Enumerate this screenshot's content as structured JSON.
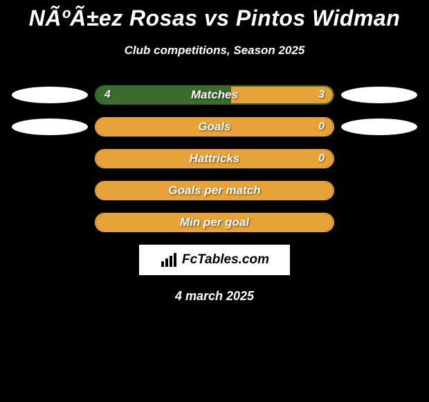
{
  "title": "NÃºÃ±ez Rosas vs Pintos Widman",
  "subtitle": "Club competitions, Season 2025",
  "date": "4 march 2025",
  "logo_text": "FcTables.com",
  "background_color": "#000000",
  "ellipse_color": "#ffffff",
  "colors": {
    "player1": "#3a6b2f",
    "player2": "#e8a23a"
  },
  "rows": [
    {
      "label": "Matches",
      "left_val": "4",
      "right_val": "3",
      "left_pct": 57,
      "right_pct": 43,
      "show_ellipse_left": true,
      "show_ellipse_right": true,
      "show_vals": true,
      "border": "#3a6b2f"
    },
    {
      "label": "Goals",
      "left_val": "",
      "right_val": "0",
      "left_pct": 0,
      "right_pct": 100,
      "show_ellipse_left": true,
      "show_ellipse_right": true,
      "show_vals": true,
      "border": "#e8a23a"
    },
    {
      "label": "Hattricks",
      "left_val": "",
      "right_val": "0",
      "left_pct": 0,
      "right_pct": 100,
      "show_ellipse_left": false,
      "show_ellipse_right": false,
      "show_vals": true,
      "border": "#e8a23a"
    },
    {
      "label": "Goals per match",
      "left_val": "",
      "right_val": "",
      "left_pct": 0,
      "right_pct": 100,
      "show_ellipse_left": false,
      "show_ellipse_right": false,
      "show_vals": false,
      "border": "#e8a23a"
    },
    {
      "label": "Min per goal",
      "left_val": "",
      "right_val": "",
      "left_pct": 0,
      "right_pct": 100,
      "show_ellipse_left": false,
      "show_ellipse_right": false,
      "show_vals": false,
      "border": "#e8a23a"
    }
  ]
}
